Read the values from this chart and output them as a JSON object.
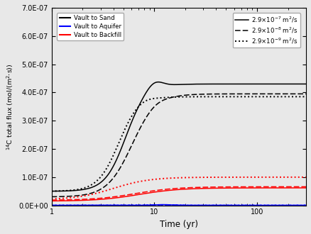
{
  "xlabel": "Time (yr)",
  "ylabel": "14C total flux",
  "xlim": [
    1,
    300
  ],
  "ylim": [
    0,
    7e-07
  ],
  "ytick_labels": [
    "0.0E+00",
    "1.0E-07",
    "2.0E-07",
    "3.0E-07",
    "4.0E-07",
    "5.0E-07",
    "6.0E-07",
    "7.0E-07"
  ],
  "yticks": [
    0,
    1e-07,
    2e-07,
    3e-07,
    4e-07,
    5e-07,
    6e-07,
    7e-07
  ],
  "bg_color": "#e8e8e8",
  "legend1_labels": [
    "Vault to Sand",
    "Vault to Aquifer",
    "Vault to Backfill"
  ],
  "legend1_colors": [
    "black",
    "blue",
    "red"
  ],
  "legend2_labels": [
    "2.9×10⁻⁷ m²/s",
    "2.9×10⁻⁸ m²/s",
    "2.9×10⁻⁹ m²/s"
  ],
  "legend2_styles": [
    "-",
    "--",
    ":"
  ]
}
